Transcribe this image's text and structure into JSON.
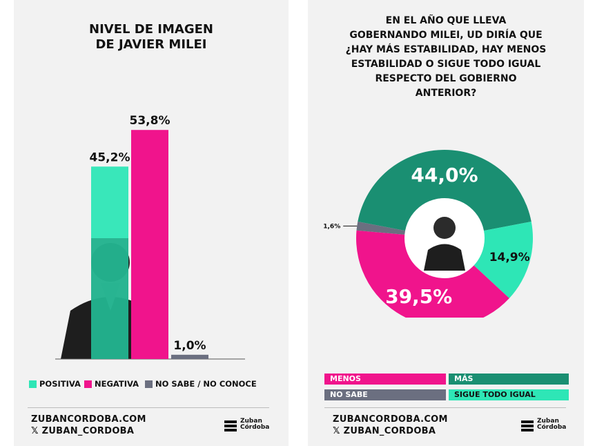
{
  "left": {
    "title": "NIVEL DE IMAGEN\nDE JAVIER MILEI",
    "legend": [
      {
        "label": "POSITIVA",
        "color": "#2ee6b6"
      },
      {
        "label": "NEGATIVA",
        "color": "#f0148c"
      },
      {
        "label": "NO SABE / NO CONOCE",
        "color": "#6b6f80"
      }
    ],
    "footer_url": "ZUBANCORDOBA.COM",
    "footer_handle": "𝕏 ZUBAN_CORDOBA",
    "logo_line1": "Zuban",
    "logo_line2": "Córdoba"
  },
  "right": {
    "title": "EN EL AÑO QUE LLEVA\nGOBERNANDO MILEI, UD DIRÍA QUE\n¿HAY MÁS ESTABILIDAD, HAY MENOS\nESTABILIDAD O SIGUE TODO IGUAL\nRESPECTO DEL GOBIERNO\nANTERIOR?",
    "legend": [
      {
        "label": "MENOS",
        "color": "#f0148c"
      },
      {
        "label": "MÁS",
        "color": "#1a8f72"
      },
      {
        "label": "NO SABE",
        "color": "#6b6f80"
      },
      {
        "label": "SIGUE TODO IGUAL",
        "color": "#2ee6b6"
      }
    ],
    "footer_url": "ZUBANCORDOBA.COM",
    "footer_handle": "𝕏 ZUBAN_CORDOBA",
    "logo_line1": "Zuban",
    "logo_line2": "Córdoba"
  },
  "chart_data": [
    {
      "type": "bar",
      "title": "NIVEL DE IMAGEN DE JAVIER MILEI",
      "categories": [
        "POSITIVA",
        "NEGATIVA",
        "NO SABE / NO CONOCE"
      ],
      "values": [
        45.2,
        53.8,
        1.0
      ],
      "labels": [
        "45,2%",
        "53,8%",
        "1,0%"
      ],
      "colors": [
        "#2ee6b6",
        "#f0148c",
        "#6b6f80"
      ],
      "ylim": [
        0,
        60
      ],
      "grid": false
    },
    {
      "type": "pie",
      "title": "EN EL AÑO QUE LLEVA GOBERNANDO MILEI, UD DIRÍA QUE ¿HAY MÁS ESTABILIDAD, HAY MENOS ESTABILIDAD O SIGUE TODO IGUAL RESPECTO DEL GOBIERNO ANTERIOR?",
      "categories": [
        "MÁS",
        "SIGUE TODO IGUAL",
        "MENOS",
        "NO SABE"
      ],
      "values": [
        44.0,
        14.9,
        39.5,
        1.6
      ],
      "labels": [
        "44,0%",
        "14,9%",
        "39,5%",
        "1,6%"
      ],
      "colors": [
        "#1a8f72",
        "#2ee6b6",
        "#f0148c",
        "#6b6f80"
      ]
    }
  ]
}
